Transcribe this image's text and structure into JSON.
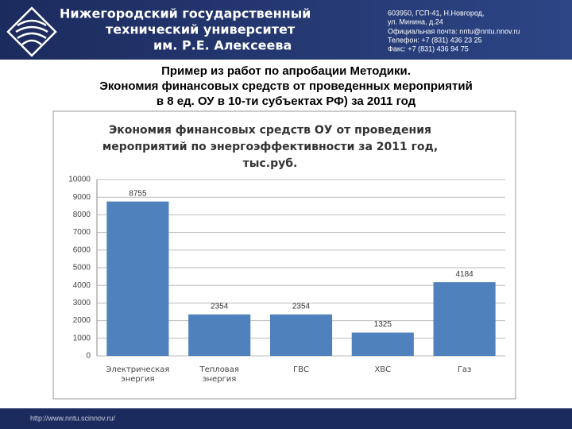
{
  "header": {
    "university": [
      "Нижегородский государственный",
      "технический университет",
      "им. Р.Е. Алексеева"
    ],
    "contacts": [
      "603950, ГСП-41, Н.Новгород,",
      "ул. Минина, д.24",
      "Официальная почта: nntu@nntu.nnov.ru",
      "Телефон: +7 (831) 436 23 25",
      "Факс: +7 (831) 436 94 75"
    ]
  },
  "slide_title": [
    "Пример из работ по апробации Методики.",
    "Экономия финансовых средств от проведенных мероприятий",
    "в 8 ед. ОУ в 10-ти субъектах РФ) за 2011 год"
  ],
  "chart_data": {
    "type": "bar",
    "title": [
      "Экономия финансовых средств ОУ от проведения",
      "мероприятий по энергоэффективности за 2011 год,",
      "тыс.руб."
    ],
    "categories": [
      "Электрическая энергия",
      "Тепловая энергия",
      "ГВС",
      "ХВС",
      "Газ"
    ],
    "values": [
      8755,
      2354,
      2354,
      1325,
      4184
    ],
    "color": "#4f81bd",
    "ylim": [
      0,
      10000
    ],
    "yticks": [
      0,
      1000,
      2000,
      3000,
      4000,
      5000,
      6000,
      7000,
      8000,
      9000,
      10000
    ],
    "grid": true
  },
  "footer": {
    "url": "http://www.nntu.scinnov.ru/"
  }
}
